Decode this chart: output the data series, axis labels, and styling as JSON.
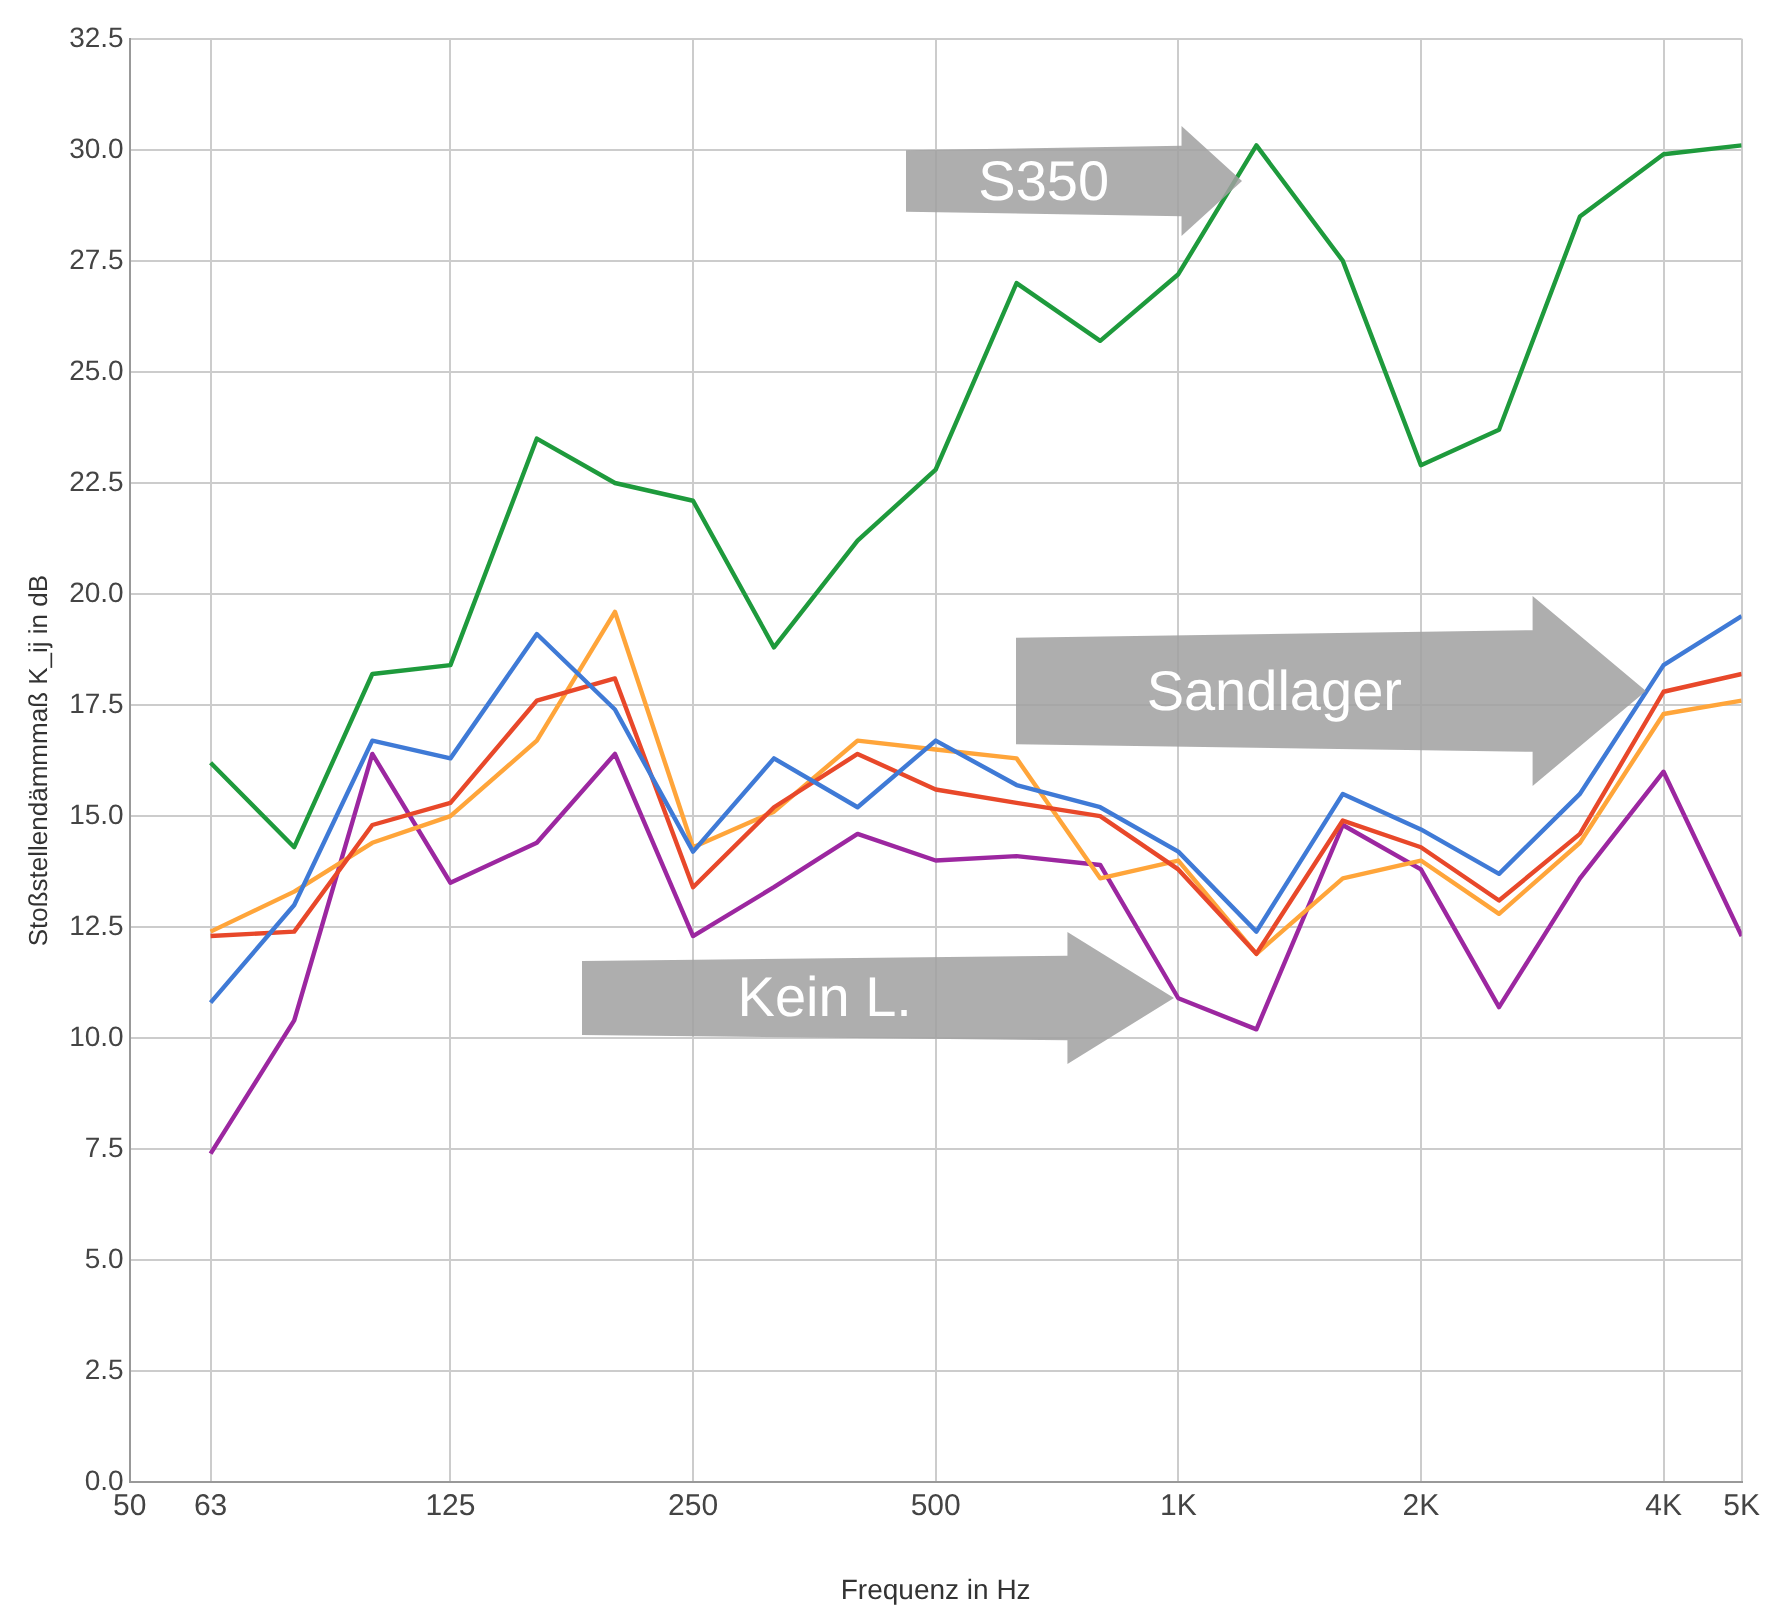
{
  "chart_data": {
    "type": "line",
    "xlabel": "Frequenz in Hz",
    "ylabel": "Stoßstellendämmmaß K_ij in dB",
    "x": [
      63,
      80,
      100,
      125,
      160,
      200,
      250,
      315,
      400,
      500,
      630,
      800,
      1000,
      1250,
      1600,
      2000,
      2500,
      3150,
      4000,
      5000
    ],
    "log": "x",
    "xlim": [
      50,
      5000
    ],
    "xticks": [
      50,
      63,
      125,
      250,
      500,
      {
        "value": 1000,
        "label": "1K"
      },
      {
        "value": 2000,
        "label": "2K"
      },
      {
        "value": 4000,
        "label": "4K"
      },
      {
        "value": 5000,
        "label": "5K"
      }
    ],
    "ylim": [
      0,
      32.5
    ],
    "yticks": [
      {
        "value": 0,
        "label": "0.0"
      },
      2.5,
      {
        "value": 5,
        "label": "5.0"
      },
      7.5,
      {
        "value": 10,
        "label": "10.0"
      },
      12.5,
      {
        "value": 15,
        "label": "15.0"
      },
      17.5,
      {
        "value": 20,
        "label": "20.0"
      },
      22.5,
      {
        "value": 25,
        "label": "25.0"
      },
      27.5,
      {
        "value": 30,
        "label": "30.0"
      },
      32.5
    ],
    "grid": true,
    "legend": false,
    "marker": "none",
    "line_style": "solid",
    "annotations": [
      "S350",
      "Sandlager",
      "Kein L."
    ],
    "series": [
      {
        "color": "#3f7ad6",
        "values": [
          10.8,
          13.0,
          16.7,
          16.3,
          19.1,
          17.4,
          14.2,
          16.3,
          15.2,
          16.7,
          15.7,
          15.2,
          14.2,
          12.4,
          15.5,
          14.7,
          13.7,
          15.5,
          18.4,
          19.5
        ]
      },
      {
        "color": "#e8482a",
        "values": [
          12.3,
          12.4,
          14.8,
          15.3,
          17.6,
          18.1,
          13.4,
          15.2,
          16.4,
          15.6,
          15.3,
          15.0,
          13.8,
          11.9,
          14.9,
          14.3,
          13.1,
          14.6,
          17.8,
          18.2
        ]
      },
      {
        "color": "#ffa53a",
        "values": [
          12.4,
          13.3,
          14.4,
          15.0,
          16.7,
          19.6,
          14.3,
          15.1,
          16.7,
          16.5,
          16.3,
          13.6,
          14.0,
          11.9,
          13.6,
          14.0,
          12.8,
          14.4,
          17.3,
          17.6
        ]
      },
      {
        "color": "#9c27a0",
        "values": [
          7.4,
          10.4,
          16.4,
          13.5,
          14.4,
          16.4,
          12.3,
          13.4,
          14.6,
          14.0,
          14.1,
          13.9,
          10.9,
          10.2,
          14.8,
          13.8,
          10.7,
          13.6,
          16.0,
          12.3
        ]
      },
      {
        "color": "#1e9a3c",
        "values": [
          16.2,
          14.3,
          18.2,
          18.4,
          23.5,
          22.5,
          22.1,
          18.8,
          21.2,
          22.8,
          27.0,
          25.7,
          27.2,
          30.1,
          27.5,
          22.9,
          23.7,
          28.5,
          29.9,
          30.1
        ]
      }
    ]
  }
}
